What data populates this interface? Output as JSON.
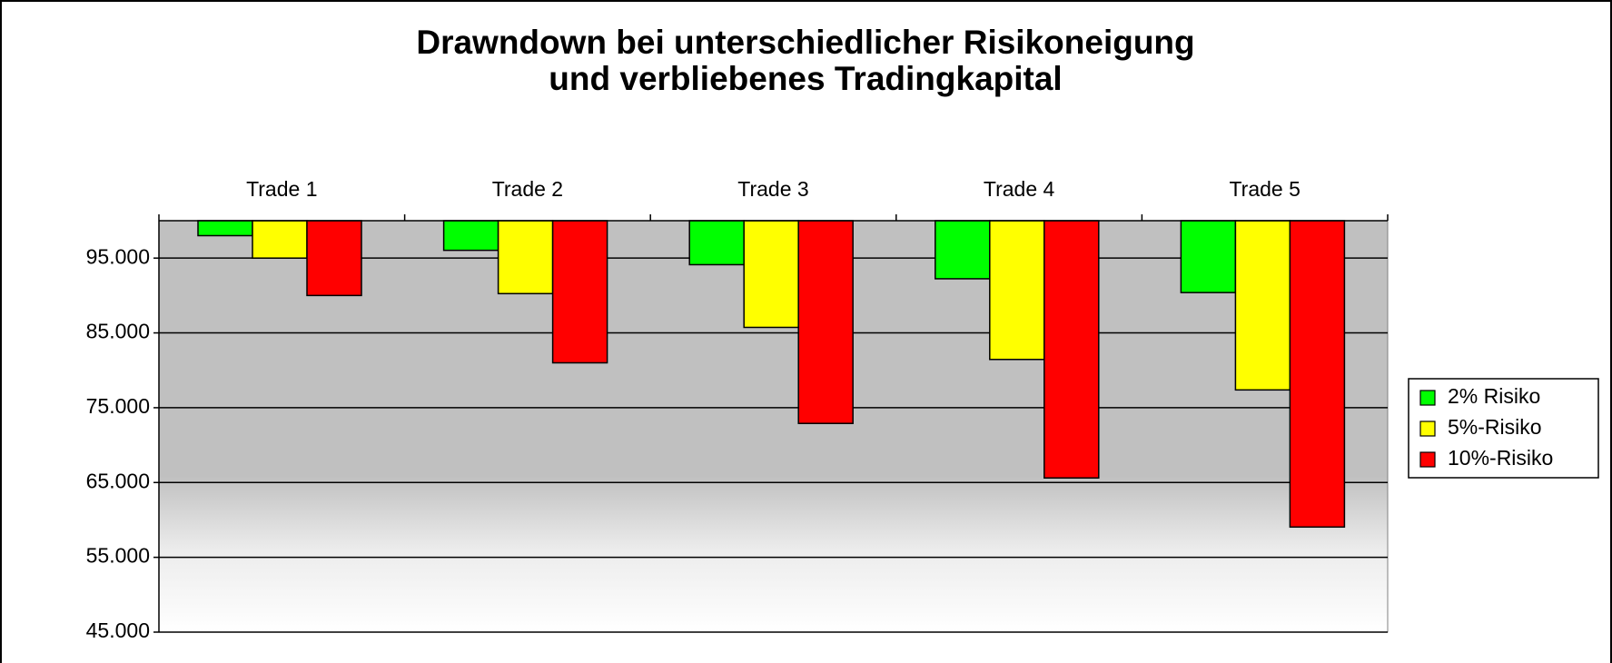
{
  "chart_data": {
    "type": "bar",
    "title": [
      "Drawndown bei unterschiedlicher Risikoneigung",
      "und verbliebenes Tradingkapital"
    ],
    "categories": [
      "Trade 1",
      "Trade 2",
      "Trade 3",
      "Trade 4",
      "Trade 5"
    ],
    "series": [
      {
        "name": "2% Risiko",
        "color": "#00ff00",
        "values": [
          98000,
          96040,
          94119,
          92237,
          90392
        ]
      },
      {
        "name": "5%-Risiko",
        "color": "#ffff00",
        "values": [
          95000,
          90250,
          85737,
          81451,
          77378
        ]
      },
      {
        "name": "10%-Risiko",
        "color": "#ff0000",
        "values": [
          90000,
          81000,
          72900,
          65610,
          59049
        ]
      }
    ],
    "ylim": [
      45000,
      100000
    ],
    "yticks": [
      {
        "value": 45000,
        "label": "45.000"
      },
      {
        "value": 55000,
        "label": "55.000"
      },
      {
        "value": 65000,
        "label": "65.000"
      },
      {
        "value": 75000,
        "label": "75.000"
      },
      {
        "value": 85000,
        "label": "85.000"
      },
      {
        "value": 95000,
        "label": "95.000"
      }
    ],
    "grid": true,
    "x_axis_position": "top",
    "legend": "right"
  }
}
